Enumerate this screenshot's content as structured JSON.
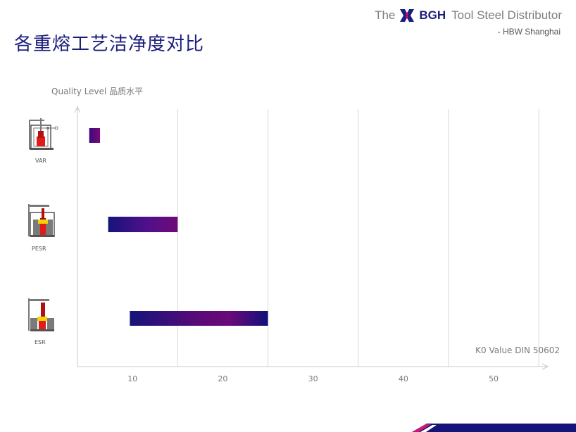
{
  "slide": {
    "title": "各重熔工艺洁净度对比",
    "brand_prefix": "The",
    "brand_name": "BGH",
    "brand_suffix": "Tool Steel Distributor",
    "brand_sub": "- HBW Shanghai"
  },
  "colors": {
    "title": "#1c1e7c",
    "bar_dark": "#14147a",
    "bar_mid": "#6a0a78",
    "grid": "#d9d9d9",
    "axis": "#bfbfbf"
  },
  "icons": [
    {
      "name": "var-furnace-icon",
      "label": "VAR"
    },
    {
      "name": "pesr-furnace-icon",
      "label": "PESR"
    },
    {
      "name": "esr-furnace-icon",
      "label": "ESR"
    }
  ],
  "chart_data": {
    "type": "bar",
    "orientation": "horizontal",
    "title": "",
    "ylabel": "Quality Level 品质水平",
    "xlabel": "K0 Value DIN 50602",
    "categories": [
      "VAR",
      "PESR",
      "ESR"
    ],
    "ranges": [
      {
        "category": "VAR",
        "start": 5.2,
        "end": 6.4
      },
      {
        "category": "PESR",
        "start": 7.3,
        "end": 15.0
      },
      {
        "category": "ESR",
        "start": 9.7,
        "end": 25.0
      }
    ],
    "xlim": [
      3.9,
      56
    ],
    "xticks": [
      10,
      20,
      30,
      40,
      50
    ],
    "xtick_labels": [
      "10",
      "20",
      "30",
      "40",
      "50"
    ],
    "gridlines_at": [
      15,
      25,
      35,
      45,
      55
    ],
    "grid": true,
    "legend": "none"
  }
}
